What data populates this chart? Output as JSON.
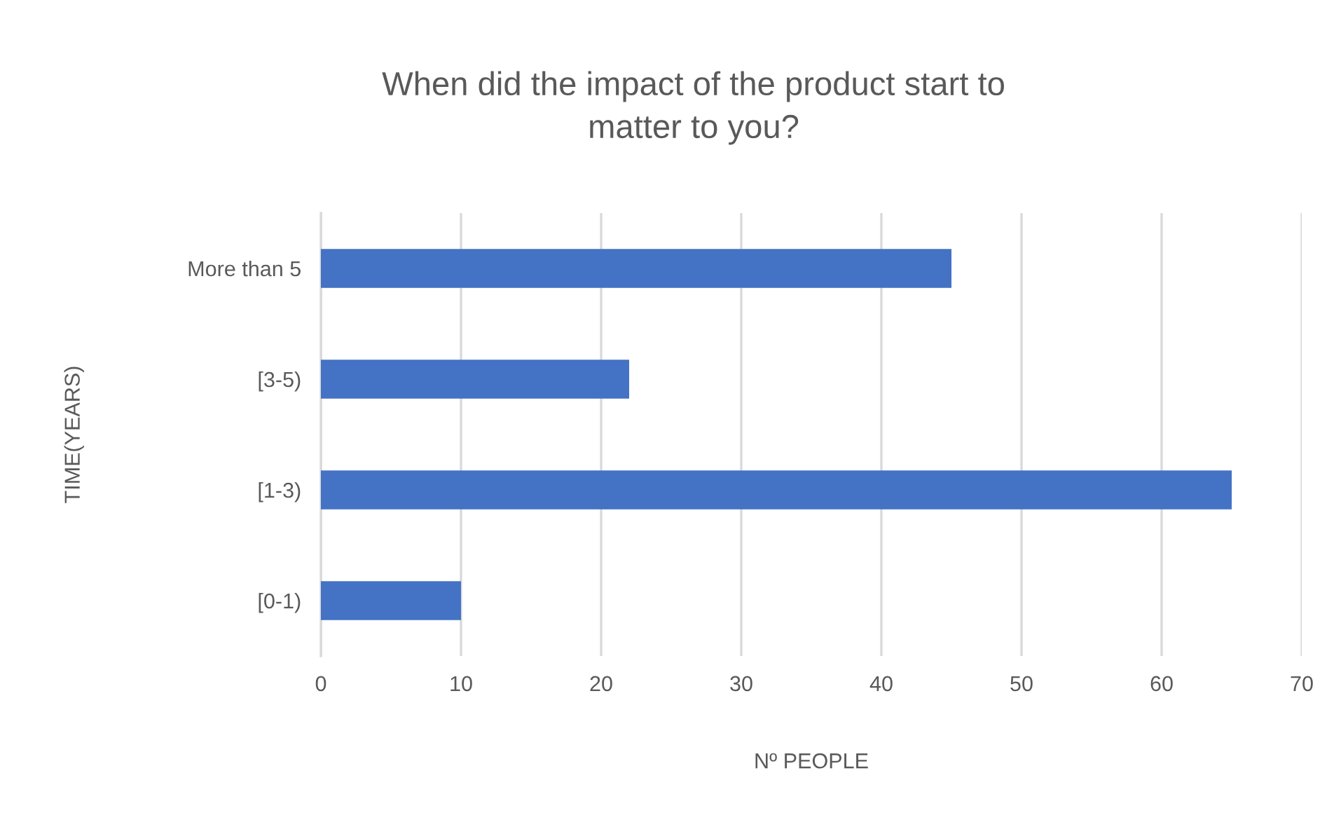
{
  "chart_data": {
    "type": "bar",
    "orientation": "horizontal",
    "title": "When did the impact of the product start to\nmatter to you?",
    "xlabel": "Nº PEOPLE",
    "ylabel": "TIME(YEARS)",
    "categories": [
      "More than 5",
      "[3-5)",
      "[1-3)",
      "[0-1)"
    ],
    "values": [
      45,
      22,
      65,
      10
    ],
    "color": "#4472c4",
    "xlim": [
      0,
      70
    ],
    "xticks": [
      0,
      10,
      20,
      30,
      40,
      50,
      60,
      70
    ],
    "grid": "x"
  }
}
